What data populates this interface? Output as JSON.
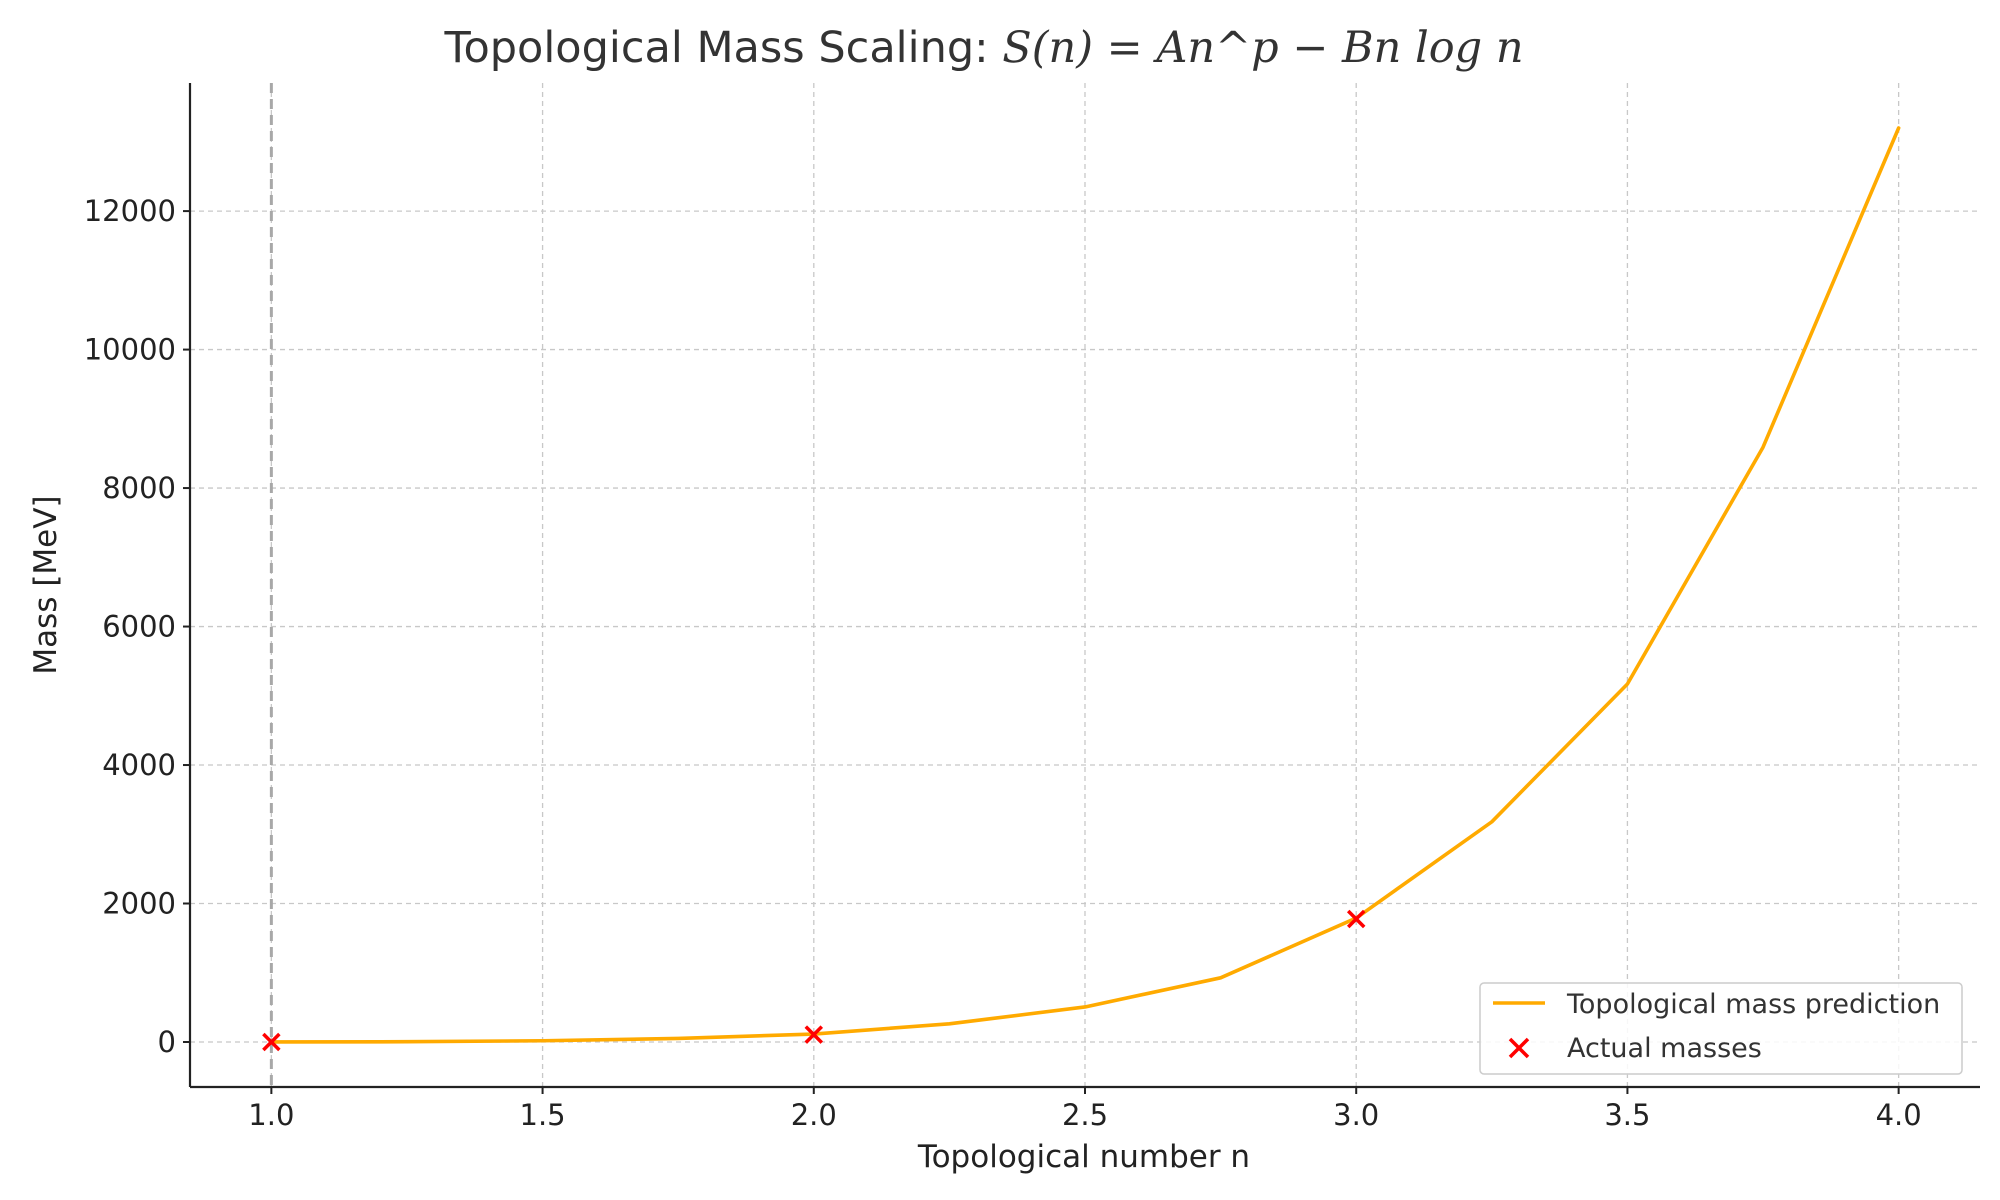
{
  "chart_data": {
    "type": "line",
    "title": {
      "prefix": "Topological Mass Scaling: ",
      "formula": "S(n) = An^p − Bn log n"
    },
    "xlabel": "Topological number n",
    "ylabel": "Mass [MeV]",
    "xlim": [
      0.85,
      4.15
    ],
    "ylim": [
      -650,
      13850
    ],
    "xticks": [
      1.0,
      1.5,
      2.0,
      2.5,
      3.0,
      3.5,
      4.0
    ],
    "xtick_labels": [
      "1.0",
      "1.5",
      "2.0",
      "2.5",
      "3.0",
      "3.5",
      "4.0"
    ],
    "yticks": [
      0,
      2000,
      4000,
      6000,
      8000,
      10000,
      12000
    ],
    "ytick_labels": [
      "0",
      "2000",
      "4000",
      "6000",
      "8000",
      "10000",
      "12000"
    ],
    "grid": true,
    "grid_style": "dashed",
    "vline_x": 1.0,
    "legend_position": "lower-right",
    "series": [
      {
        "name": "Topological mass prediction",
        "type": "line",
        "color": "#FFAA00",
        "x": [
          1.0,
          1.25,
          1.5,
          1.75,
          2.0,
          2.25,
          2.5,
          2.75,
          3.0,
          3.25,
          3.5,
          3.75,
          4.0
        ],
        "y": [
          0.5,
          4,
          18,
          51,
          115,
          263,
          506,
          927,
          1790,
          3180,
          5170,
          8590,
          13200
        ]
      },
      {
        "name": "Actual masses",
        "type": "scatter",
        "color": "#FF0000",
        "marker": "x",
        "x": [
          1.0,
          2.0,
          3.0
        ],
        "y": [
          0.5,
          106,
          1777
        ]
      }
    ]
  }
}
